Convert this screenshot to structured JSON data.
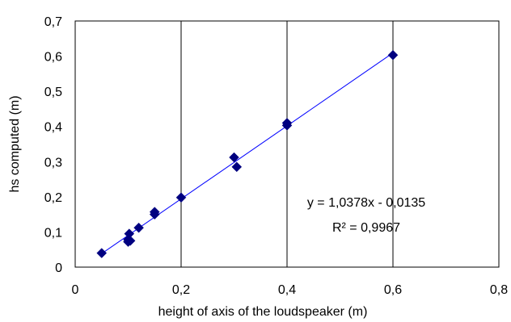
{
  "chart_data": {
    "type": "scatter",
    "title": "",
    "xlabel": "height of axis of the loudspeaker (m)",
    "ylabel": "hs computed (m)",
    "xlim": [
      0,
      0.8
    ],
    "ylim": [
      0,
      0.7
    ],
    "x_ticks": [
      0,
      0.2,
      0.4,
      0.6,
      0.8
    ],
    "x_tick_labels": [
      "0",
      "0,2",
      "0,4",
      "0,6",
      "0,8"
    ],
    "y_ticks": [
      0,
      0.1,
      0.2,
      0.3,
      0.4,
      0.5,
      0.6,
      0.7
    ],
    "y_tick_labels": [
      "0",
      "0,1",
      "0,2",
      "0,3",
      "0,4",
      "0,5",
      "0,6",
      "0,7"
    ],
    "grid": "vertical",
    "marker_color": "#000080",
    "trendline_color": "#0000ff",
    "points": [
      {
        "x": 0.05,
        "y": 0.04
      },
      {
        "x": 0.1,
        "y": 0.072
      },
      {
        "x": 0.1,
        "y": 0.078
      },
      {
        "x": 0.102,
        "y": 0.095
      },
      {
        "x": 0.104,
        "y": 0.075
      },
      {
        "x": 0.12,
        "y": 0.112
      },
      {
        "x": 0.15,
        "y": 0.15
      },
      {
        "x": 0.15,
        "y": 0.157
      },
      {
        "x": 0.2,
        "y": 0.198
      },
      {
        "x": 0.3,
        "y": 0.312
      },
      {
        "x": 0.305,
        "y": 0.285
      },
      {
        "x": 0.4,
        "y": 0.403
      },
      {
        "x": 0.4,
        "y": 0.41
      },
      {
        "x": 0.6,
        "y": 0.603
      }
    ],
    "trendline": {
      "x": [
        0.05,
        0.6
      ],
      "y": [
        0.0384,
        0.6092
      ]
    },
    "annotations": [
      "y = 1,0378x - 0,0135",
      "R² = 0,9967"
    ]
  }
}
